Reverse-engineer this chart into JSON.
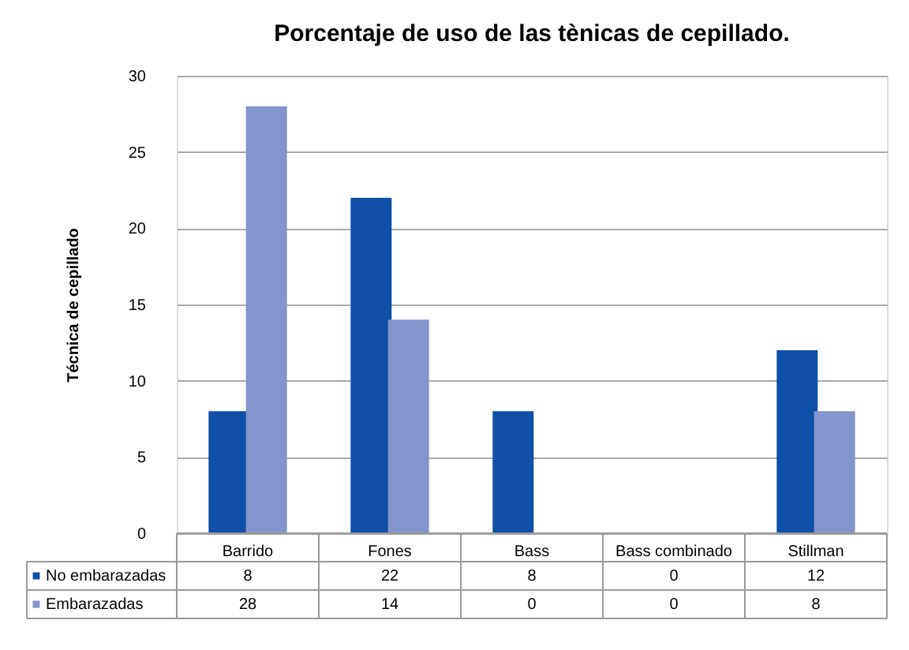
{
  "chart_data": {
    "type": "bar",
    "title": "Porcentaje de uso de las tènicas de cepillado.",
    "ylabel": "Técnica de cepillado",
    "categories": [
      "Barrido",
      "Fones",
      "Bass",
      "Bass combinado",
      "Stillman"
    ],
    "series": [
      {
        "name": "No embarazadas",
        "color": "#0f4fa8",
        "values": [
          8,
          22,
          8,
          0,
          12
        ]
      },
      {
        "name": "Embarazadas",
        "color": "#8494cc",
        "values": [
          28,
          14,
          0,
          0,
          8
        ]
      }
    ],
    "ylim": [
      0,
      30
    ],
    "yticks": [
      0,
      5,
      10,
      15,
      20,
      25,
      30
    ],
    "grid": "y",
    "legend": "bottom left",
    "data_labels": true
  }
}
